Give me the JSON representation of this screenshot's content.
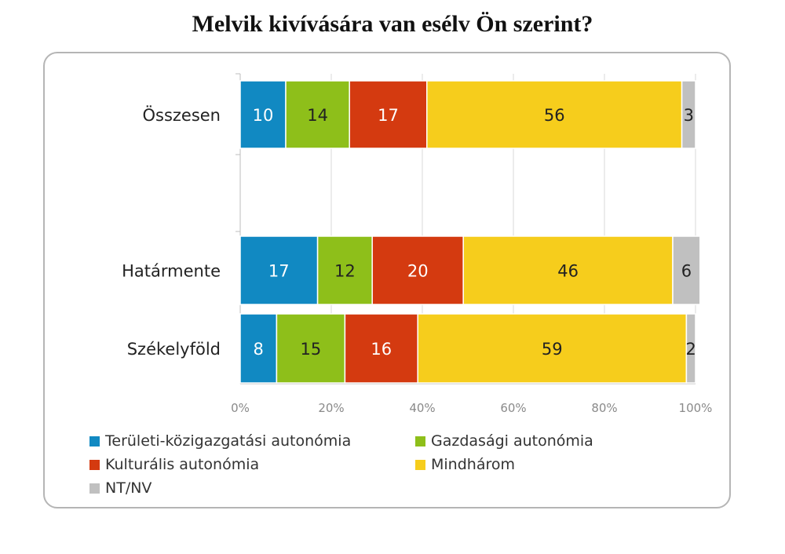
{
  "chart_data": {
    "type": "bar",
    "orientation": "horizontal",
    "stacked": "percent",
    "title": "Melvik kivívására van esélv Ön szerint?",
    "categories": [
      "Összesen",
      "Határmente",
      "Székelyföld"
    ],
    "series": [
      {
        "name": "Területi-közigazgatási autonómia",
        "color": "#1189c2",
        "values": [
          10,
          17,
          8
        ]
      },
      {
        "name": "Gazdasági autonómia",
        "color": "#8ebf1a",
        "values": [
          14,
          12,
          15
        ]
      },
      {
        "name": "Kulturális autonómia",
        "color": "#d43a10",
        "values": [
          17,
          20,
          16
        ]
      },
      {
        "name": "Mindhárom",
        "color": "#f6cd1c",
        "values": [
          56,
          46,
          59
        ]
      },
      {
        "name": "NT/NV",
        "color": "#c0c0c0",
        "values": [
          3,
          6,
          2
        ]
      }
    ],
    "x_ticks": [
      "0%",
      "20%",
      "40%",
      "60%",
      "80%",
      "100%"
    ],
    "xlim": [
      0,
      100
    ],
    "grid": true,
    "legend_position": "bottom"
  }
}
